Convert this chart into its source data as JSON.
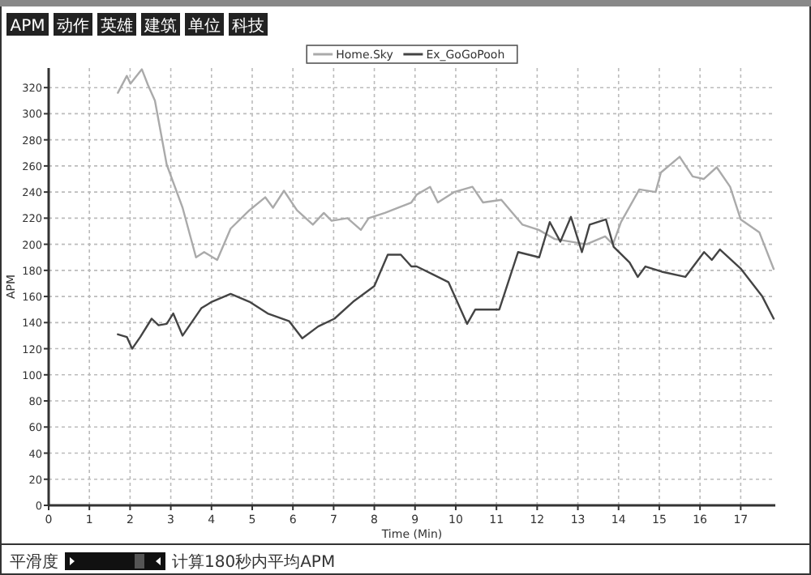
{
  "chart_data": {
    "type": "line",
    "xlabel": "Time (Min)",
    "ylabel": "APM",
    "xlim": [
      0,
      17.85
    ],
    "ylim": [
      0,
      335
    ],
    "xticks": [
      0,
      1,
      2,
      3,
      4,
      5,
      6,
      7,
      8,
      9,
      10,
      11,
      12,
      13,
      14,
      15,
      16,
      17
    ],
    "yticks": [
      0,
      20,
      40,
      60,
      80,
      100,
      120,
      140,
      160,
      180,
      200,
      220,
      240,
      260,
      280,
      300,
      320
    ],
    "grid": true,
    "legend": "top",
    "line_style": "solid",
    "marker": "none",
    "annotations": [
      "APM",
      "动作",
      "英雄",
      "建筑",
      "单位",
      "科技",
      "平滑度",
      "计算180秒内平均APM"
    ],
    "series": [
      {
        "name": "Home.Sky",
        "color": "#aaaaaa",
        "x": [
          1.7,
          1.92,
          2.01,
          2.29,
          2.44,
          2.61,
          2.9,
          3.29,
          3.62,
          3.82,
          4.14,
          4.47,
          4.93,
          5.32,
          5.51,
          5.78,
          6.1,
          6.49,
          6.76,
          6.95,
          7.34,
          7.67,
          7.86,
          8.26,
          8.59,
          8.91,
          9.04,
          9.37,
          9.56,
          9.96,
          10.41,
          10.67,
          11.12,
          11.64,
          12.04,
          12.43,
          12.82,
          13.21,
          13.67,
          13.86,
          14.06,
          14.51,
          14.91,
          15.04,
          15.5,
          15.82,
          16.09,
          16.41,
          16.74,
          17.0,
          17.46,
          17.81
        ],
        "values": [
          316,
          329,
          323,
          334,
          322,
          310,
          261,
          228,
          190,
          194,
          188,
          212,
          226,
          236,
          228,
          241,
          226,
          215,
          224,
          218,
          220,
          211,
          220,
          224,
          228,
          232,
          238,
          244,
          232,
          240,
          244,
          232,
          234,
          215,
          211,
          204,
          202,
          200,
          206,
          200,
          217,
          242,
          240,
          255,
          267,
          252,
          250,
          259,
          244,
          219,
          209,
          181
        ]
      },
      {
        "name": "Ex_GoGoPooh",
        "color": "#444444",
        "x": [
          1.7,
          1.92,
          2.05,
          2.25,
          2.53,
          2.7,
          2.9,
          3.06,
          3.29,
          3.75,
          4.01,
          4.47,
          4.93,
          5.38,
          5.91,
          6.23,
          6.62,
          7.02,
          7.48,
          8.0,
          8.33,
          8.65,
          8.91,
          9.04,
          9.43,
          9.82,
          10.28,
          10.48,
          11.07,
          11.53,
          12.05,
          12.31,
          12.57,
          12.83,
          13.1,
          13.29,
          13.69,
          13.88,
          14.27,
          14.47,
          14.66,
          15.06,
          15.64,
          16.1,
          16.29,
          16.49,
          17.01,
          17.53,
          17.81
        ],
        "values": [
          131,
          129,
          120,
          129,
          143,
          138,
          139,
          147,
          130,
          151,
          156,
          162,
          156,
          147,
          141,
          128,
          137,
          143,
          156,
          168,
          192,
          192,
          183,
          183,
          177,
          171,
          139,
          150,
          150,
          194,
          190,
          217,
          202,
          221,
          194,
          215,
          219,
          198,
          186,
          175,
          183,
          179,
          175,
          194,
          188,
          196,
          181,
          160,
          143
        ]
      }
    ]
  }
}
